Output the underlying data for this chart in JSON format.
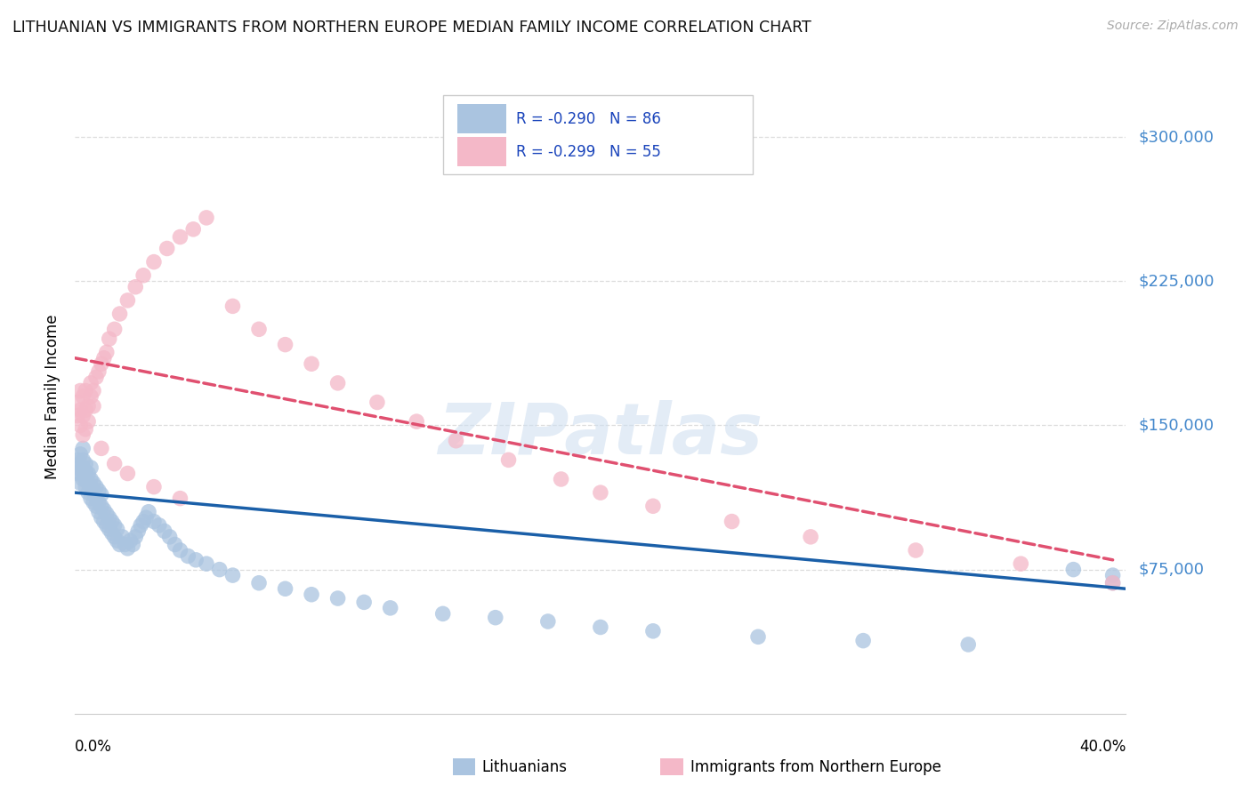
{
  "title": "LITHUANIAN VS IMMIGRANTS FROM NORTHERN EUROPE MEDIAN FAMILY INCOME CORRELATION CHART",
  "source": "Source: ZipAtlas.com",
  "ylabel": "Median Family Income",
  "series1_label": "Lithuanians",
  "series2_label": "Immigrants from Northern Europe",
  "color1": "#aac4e0",
  "color2": "#f4b8c8",
  "trendline1_color": "#1a5fa8",
  "trendline2_color": "#e05070",
  "legend_r1": "-0.290",
  "legend_n1": "86",
  "legend_r2": "-0.299",
  "legend_n2": "55",
  "xmin": 0.0,
  "xmax": 0.4,
  "ymin": 0,
  "ymax": 330000,
  "ytick_positions": [
    75000,
    150000,
    225000,
    300000
  ],
  "ytick_labels": [
    "$75,000",
    "$150,000",
    "$225,000",
    "$300,000"
  ],
  "scatter1_x": [
    0.001,
    0.001,
    0.001,
    0.002,
    0.002,
    0.002,
    0.002,
    0.003,
    0.003,
    0.003,
    0.003,
    0.004,
    0.004,
    0.004,
    0.004,
    0.005,
    0.005,
    0.005,
    0.006,
    0.006,
    0.006,
    0.006,
    0.007,
    0.007,
    0.007,
    0.008,
    0.008,
    0.008,
    0.009,
    0.009,
    0.009,
    0.01,
    0.01,
    0.01,
    0.011,
    0.011,
    0.012,
    0.012,
    0.013,
    0.013,
    0.014,
    0.014,
    0.015,
    0.015,
    0.016,
    0.016,
    0.017,
    0.018,
    0.019,
    0.02,
    0.021,
    0.022,
    0.023,
    0.024,
    0.025,
    0.026,
    0.027,
    0.028,
    0.03,
    0.032,
    0.034,
    0.036,
    0.038,
    0.04,
    0.043,
    0.046,
    0.05,
    0.055,
    0.06,
    0.07,
    0.08,
    0.09,
    0.1,
    0.11,
    0.12,
    0.14,
    0.16,
    0.18,
    0.2,
    0.22,
    0.26,
    0.3,
    0.34,
    0.38,
    0.395,
    0.395
  ],
  "scatter1_y": [
    125000,
    128000,
    132000,
    120000,
    125000,
    130000,
    135000,
    122000,
    128000,
    132000,
    138000,
    118000,
    122000,
    126000,
    130000,
    115000,
    120000,
    125000,
    112000,
    118000,
    122000,
    128000,
    110000,
    115000,
    120000,
    108000,
    112000,
    118000,
    105000,
    110000,
    116000,
    102000,
    108000,
    114000,
    100000,
    106000,
    98000,
    104000,
    96000,
    102000,
    94000,
    100000,
    92000,
    98000,
    90000,
    96000,
    88000,
    92000,
    88000,
    86000,
    90000,
    88000,
    92000,
    95000,
    98000,
    100000,
    102000,
    105000,
    100000,
    98000,
    95000,
    92000,
    88000,
    85000,
    82000,
    80000,
    78000,
    75000,
    72000,
    68000,
    65000,
    62000,
    60000,
    58000,
    55000,
    52000,
    50000,
    48000,
    45000,
    43000,
    40000,
    38000,
    36000,
    75000,
    72000,
    68000
  ],
  "scatter2_x": [
    0.001,
    0.001,
    0.002,
    0.002,
    0.002,
    0.003,
    0.003,
    0.003,
    0.004,
    0.004,
    0.004,
    0.005,
    0.005,
    0.006,
    0.006,
    0.007,
    0.007,
    0.008,
    0.009,
    0.01,
    0.011,
    0.012,
    0.013,
    0.015,
    0.017,
    0.02,
    0.023,
    0.026,
    0.03,
    0.035,
    0.04,
    0.045,
    0.05,
    0.06,
    0.07,
    0.08,
    0.09,
    0.1,
    0.115,
    0.13,
    0.145,
    0.165,
    0.185,
    0.2,
    0.22,
    0.25,
    0.28,
    0.32,
    0.36,
    0.395,
    0.01,
    0.015,
    0.02,
    0.03,
    0.04
  ],
  "scatter2_y": [
    155000,
    162000,
    150000,
    158000,
    168000,
    145000,
    155000,
    165000,
    148000,
    158000,
    168000,
    152000,
    160000,
    165000,
    172000,
    160000,
    168000,
    175000,
    178000,
    182000,
    185000,
    188000,
    195000,
    200000,
    208000,
    215000,
    222000,
    228000,
    235000,
    242000,
    248000,
    252000,
    258000,
    212000,
    200000,
    192000,
    182000,
    172000,
    162000,
    152000,
    142000,
    132000,
    122000,
    115000,
    108000,
    100000,
    92000,
    85000,
    78000,
    68000,
    138000,
    130000,
    125000,
    118000,
    112000
  ],
  "trendline1_x": [
    0.0,
    0.4
  ],
  "trendline1_y": [
    115000,
    65000
  ],
  "trendline2_x": [
    0.0,
    0.395
  ],
  "trendline2_y": [
    185000,
    80000
  ],
  "watermark_text": "ZIPatlas",
  "background_color": "#ffffff",
  "grid_color": "#dddddd",
  "title_color": "#111111",
  "ytick_color": "#4488cc",
  "legend_text_color": "#1a44bb"
}
